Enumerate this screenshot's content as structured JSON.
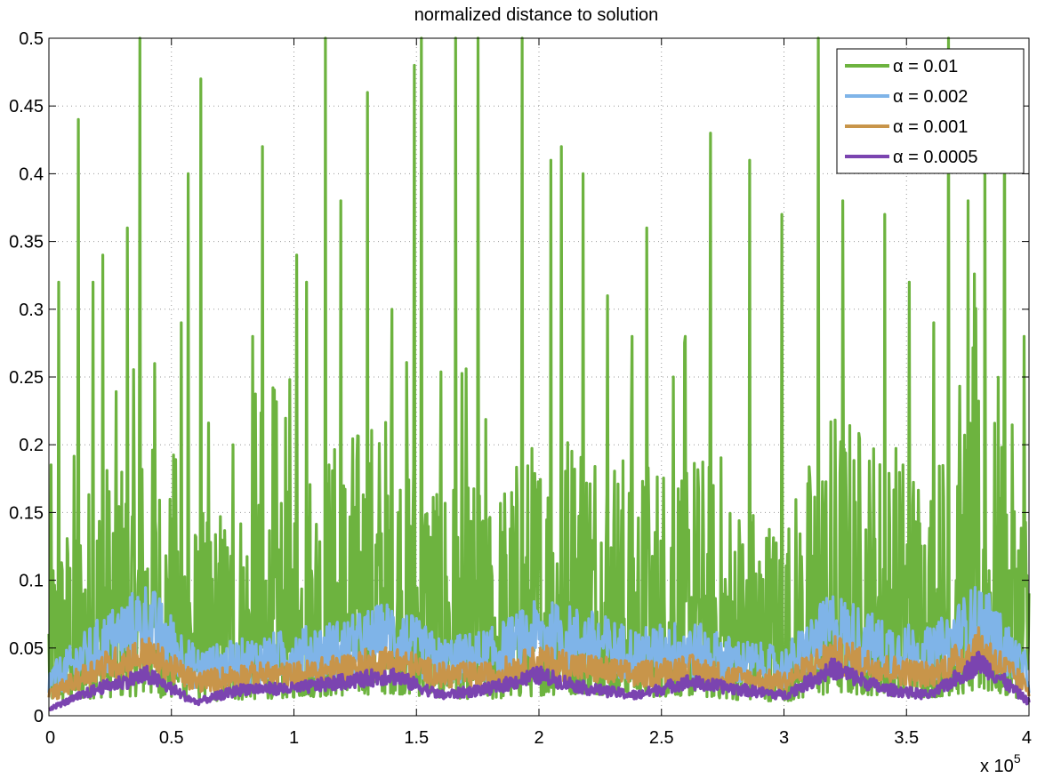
{
  "chart_data": {
    "type": "line",
    "title": "normalized distance to solution",
    "xlabel": "",
    "ylabel": "",
    "xlim": [
      0,
      400000
    ],
    "ylim": [
      0,
      0.5
    ],
    "x_tick_labels": [
      "0",
      "0.5",
      "1",
      "1.5",
      "2",
      "2.5",
      "3",
      "3.5",
      "4"
    ],
    "y_tick_labels": [
      "0",
      "0.05",
      "0.1",
      "0.15",
      "0.2",
      "0.25",
      "0.3",
      "0.35",
      "0.4",
      "0.45",
      "0.5"
    ],
    "x_multiplier": {
      "base": "x 10",
      "exponent": "5"
    },
    "grid": true,
    "legend_position": "top-right",
    "series": [
      {
        "name": "α = 0.01",
        "color": "#6db33f",
        "x": [
          0,
          20000,
          40000,
          60000,
          80000,
          100000,
          120000,
          140000,
          160000,
          180000,
          200000,
          220000,
          240000,
          260000,
          280000,
          300000,
          320000,
          340000,
          360000,
          380000,
          400000
        ],
        "values": [
          0.06,
          0.09,
          0.1,
          0.07,
          0.08,
          0.09,
          0.1,
          0.11,
          0.09,
          0.08,
          0.1,
          0.11,
          0.09,
          0.1,
          0.08,
          0.07,
          0.11,
          0.1,
          0.09,
          0.12,
          0.08
        ],
        "peaks": [
          [
            4000,
            0.32
          ],
          [
            12000,
            0.44
          ],
          [
            18000,
            0.32
          ],
          [
            22000,
            0.34
          ],
          [
            32000,
            0.36
          ],
          [
            37000,
            0.5
          ],
          [
            43000,
            0.26
          ],
          [
            54000,
            0.29
          ],
          [
            57000,
            0.4
          ],
          [
            62000,
            0.47
          ],
          [
            75000,
            0.2
          ],
          [
            83000,
            0.28
          ],
          [
            87000,
            0.42
          ],
          [
            101000,
            0.34
          ],
          [
            105000,
            0.32
          ],
          [
            113000,
            0.5
          ],
          [
            119000,
            0.38
          ],
          [
            130000,
            0.46
          ],
          [
            140000,
            0.3
          ],
          [
            149000,
            0.48
          ],
          [
            152000,
            0.5
          ],
          [
            166000,
            0.5
          ],
          [
            175000,
            0.5
          ],
          [
            193000,
            0.5
          ],
          [
            205000,
            0.41
          ],
          [
            209000,
            0.42
          ],
          [
            218000,
            0.4
          ],
          [
            228000,
            0.31
          ],
          [
            238000,
            0.28
          ],
          [
            244000,
            0.36
          ],
          [
            255000,
            0.25
          ],
          [
            270000,
            0.43
          ],
          [
            286000,
            0.41
          ],
          [
            299000,
            0.37
          ],
          [
            314000,
            0.5
          ],
          [
            324000,
            0.38
          ],
          [
            341000,
            0.37
          ],
          [
            351000,
            0.32
          ],
          [
            361000,
            0.29
          ],
          [
            367000,
            0.5
          ],
          [
            375000,
            0.38
          ],
          [
            382000,
            0.42
          ],
          [
            390000,
            0.47
          ],
          [
            398000,
            0.28
          ]
        ]
      },
      {
        "name": "α = 0.002",
        "color": "#7fb4e8",
        "x": [
          0,
          20000,
          40000,
          60000,
          80000,
          100000,
          120000,
          140000,
          160000,
          180000,
          200000,
          220000,
          240000,
          260000,
          280000,
          300000,
          320000,
          340000,
          360000,
          380000,
          400000
        ],
        "values": [
          0.025,
          0.05,
          0.07,
          0.035,
          0.04,
          0.045,
          0.05,
          0.06,
          0.04,
          0.045,
          0.06,
          0.055,
          0.045,
          0.05,
          0.04,
          0.035,
          0.065,
          0.05,
          0.045,
          0.07,
          0.03
        ]
      },
      {
        "name": "α = 0.001",
        "color": "#c8954a",
        "x": [
          0,
          20000,
          40000,
          60000,
          80000,
          100000,
          120000,
          140000,
          160000,
          180000,
          200000,
          220000,
          240000,
          260000,
          280000,
          300000,
          320000,
          340000,
          360000,
          380000,
          400000
        ],
        "values": [
          0.015,
          0.035,
          0.045,
          0.025,
          0.03,
          0.03,
          0.035,
          0.04,
          0.03,
          0.03,
          0.04,
          0.035,
          0.03,
          0.035,
          0.028,
          0.025,
          0.045,
          0.035,
          0.03,
          0.05,
          0.02
        ]
      },
      {
        "name": "α = 0.0005",
        "color": "#7b44b0",
        "x": [
          0,
          20000,
          40000,
          60000,
          80000,
          100000,
          120000,
          140000,
          160000,
          180000,
          200000,
          220000,
          240000,
          260000,
          280000,
          300000,
          320000,
          340000,
          360000,
          380000,
          400000
        ],
        "values": [
          0.005,
          0.02,
          0.03,
          0.01,
          0.02,
          0.02,
          0.025,
          0.03,
          0.015,
          0.02,
          0.03,
          0.02,
          0.015,
          0.025,
          0.02,
          0.015,
          0.035,
          0.02,
          0.015,
          0.04,
          0.01
        ]
      }
    ]
  }
}
